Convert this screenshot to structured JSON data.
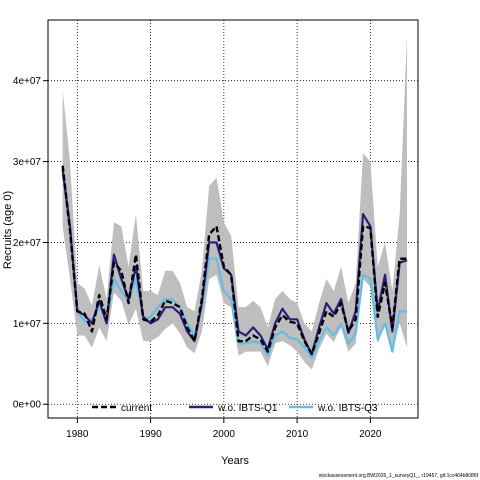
{
  "chart_data": {
    "type": "line",
    "xlabel": "Years",
    "ylabel": "Recruits (age 0)",
    "xlim": [
      1976,
      2026.5
    ],
    "ylim": [
      -1700000,
      47500000
    ],
    "x_ticks": [
      1980,
      1990,
      2000,
      2010,
      2020
    ],
    "x_tick_labels": [
      "1980",
      "1990",
      "2000",
      "2010",
      "2020"
    ],
    "y_ticks": [
      0,
      10000000,
      20000000,
      30000000,
      40000000
    ],
    "y_tick_labels": [
      "0e+00",
      "1e+07",
      "2e+07",
      "3e+07",
      "4e+07"
    ],
    "grid": true,
    "legend_position": "bottom",
    "x": [
      1978,
      1979,
      1980,
      1981,
      1982,
      1983,
      1984,
      1985,
      1986,
      1987,
      1988,
      1989,
      1990,
      1991,
      1992,
      1993,
      1994,
      1995,
      1996,
      1997,
      1998,
      1999,
      2000,
      2001,
      2002,
      2003,
      2004,
      2005,
      2006,
      2007,
      2008,
      2009,
      2010,
      2011,
      2012,
      2013,
      2014,
      2015,
      2016,
      2017,
      2018,
      2019,
      2020,
      2021,
      2022,
      2023,
      2024,
      2025
    ],
    "band": {
      "color": "#bebebe",
      "upper": [
        38800000,
        30000000,
        15000000,
        14300000,
        12200000,
        17200000,
        13000000,
        22500000,
        22000000,
        17000000,
        23500000,
        14000000,
        14000000,
        13500000,
        16500000,
        16500000,
        15000000,
        12000000,
        11500000,
        16500000,
        27000000,
        28000000,
        22500000,
        20800000,
        12000000,
        12000000,
        12800000,
        12000000,
        9500000,
        13000000,
        14000000,
        13000000,
        12500000,
        10000000,
        9000000,
        12500000,
        15500000,
        14000000,
        17000000,
        12500000,
        15000000,
        31000000,
        30000000,
        17000000,
        20000000,
        14000000,
        23500000,
        45500000
      ],
      "lower": [
        22000000,
        15500000,
        8500000,
        8500000,
        7000000,
        9500000,
        7800000,
        13800000,
        12800000,
        9800000,
        11800000,
        7800000,
        7800000,
        8300000,
        9300000,
        10000000,
        8800000,
        7000000,
        6300000,
        9000000,
        15500000,
        16000000,
        12500000,
        12000000,
        6000000,
        6500000,
        6500000,
        6500000,
        4700000,
        7500000,
        7800000,
        7300000,
        6500000,
        5200000,
        4300000,
        6800000,
        8700000,
        7700000,
        9500000,
        6500000,
        7500000,
        15500000,
        14500000,
        7500000,
        10000000,
        7000000,
        10000000,
        7000000
      ]
    },
    "series": [
      {
        "name": "current",
        "color": "#000000",
        "values": [
          29500000,
          21500000,
          11500000,
          11200000,
          9000000,
          13500000,
          10500000,
          17500000,
          16500000,
          12500000,
          18500000,
          10500000,
          10200000,
          11000000,
          12800000,
          12500000,
          12000000,
          9500000,
          7800000,
          13000000,
          21000000,
          22000000,
          17000000,
          16000000,
          7800000,
          7800000,
          8500000,
          8000000,
          6500000,
          9500000,
          11000000,
          10200000,
          10000000,
          7800000,
          6200000,
          8800000,
          11500000,
          10800000,
          12500000,
          9000000,
          10500000,
          22000000,
          21800000,
          10800000,
          15000000,
          9500000,
          18000000,
          18000000
        ]
      },
      {
        "name": "w.o. IBTS-Q1",
        "color": "#2b1e78",
        "values": [
          29000000,
          22000000,
          11500000,
          11000000,
          10000000,
          12800000,
          10000000,
          18500000,
          15500000,
          13000000,
          17000000,
          10800000,
          10000000,
          10500000,
          12000000,
          12000000,
          11200000,
          9000000,
          7800000,
          12500000,
          20000000,
          20000000,
          16800000,
          16000000,
          9000000,
          8500000,
          9500000,
          8500000,
          6800000,
          10000000,
          11800000,
          10500000,
          10500000,
          8000000,
          6200000,
          9500000,
          12500000,
          11200000,
          13000000,
          8800000,
          11500000,
          23500000,
          22000000,
          11500000,
          16000000,
          9000000,
          17500000,
          17800000
        ]
      },
      {
        "name": "w.o. IBTS-Q3",
        "color": "#66bde4",
        "values": [
          28500000,
          21800000,
          11500000,
          10200000,
          10500000,
          12000000,
          10500000,
          15500000,
          14000000,
          12800000,
          15500000,
          10500000,
          10800000,
          12000000,
          13000000,
          13000000,
          12000000,
          10000000,
          8500000,
          12000000,
          18000000,
          18000000,
          14000000,
          13000000,
          7500000,
          7500000,
          7800000,
          7500000,
          6000000,
          8500000,
          9000000,
          8200000,
          8000000,
          7000000,
          5800000,
          7800000,
          9500000,
          8500000,
          10000000,
          7500000,
          8800000,
          16000000,
          15500000,
          8000000,
          10000000,
          6500000,
          11500000,
          11500000
        ]
      }
    ]
  },
  "footer_text": "stockassessment.org,BW2026_1_surveyQ1_, r19457, git:1cc464b8086f"
}
